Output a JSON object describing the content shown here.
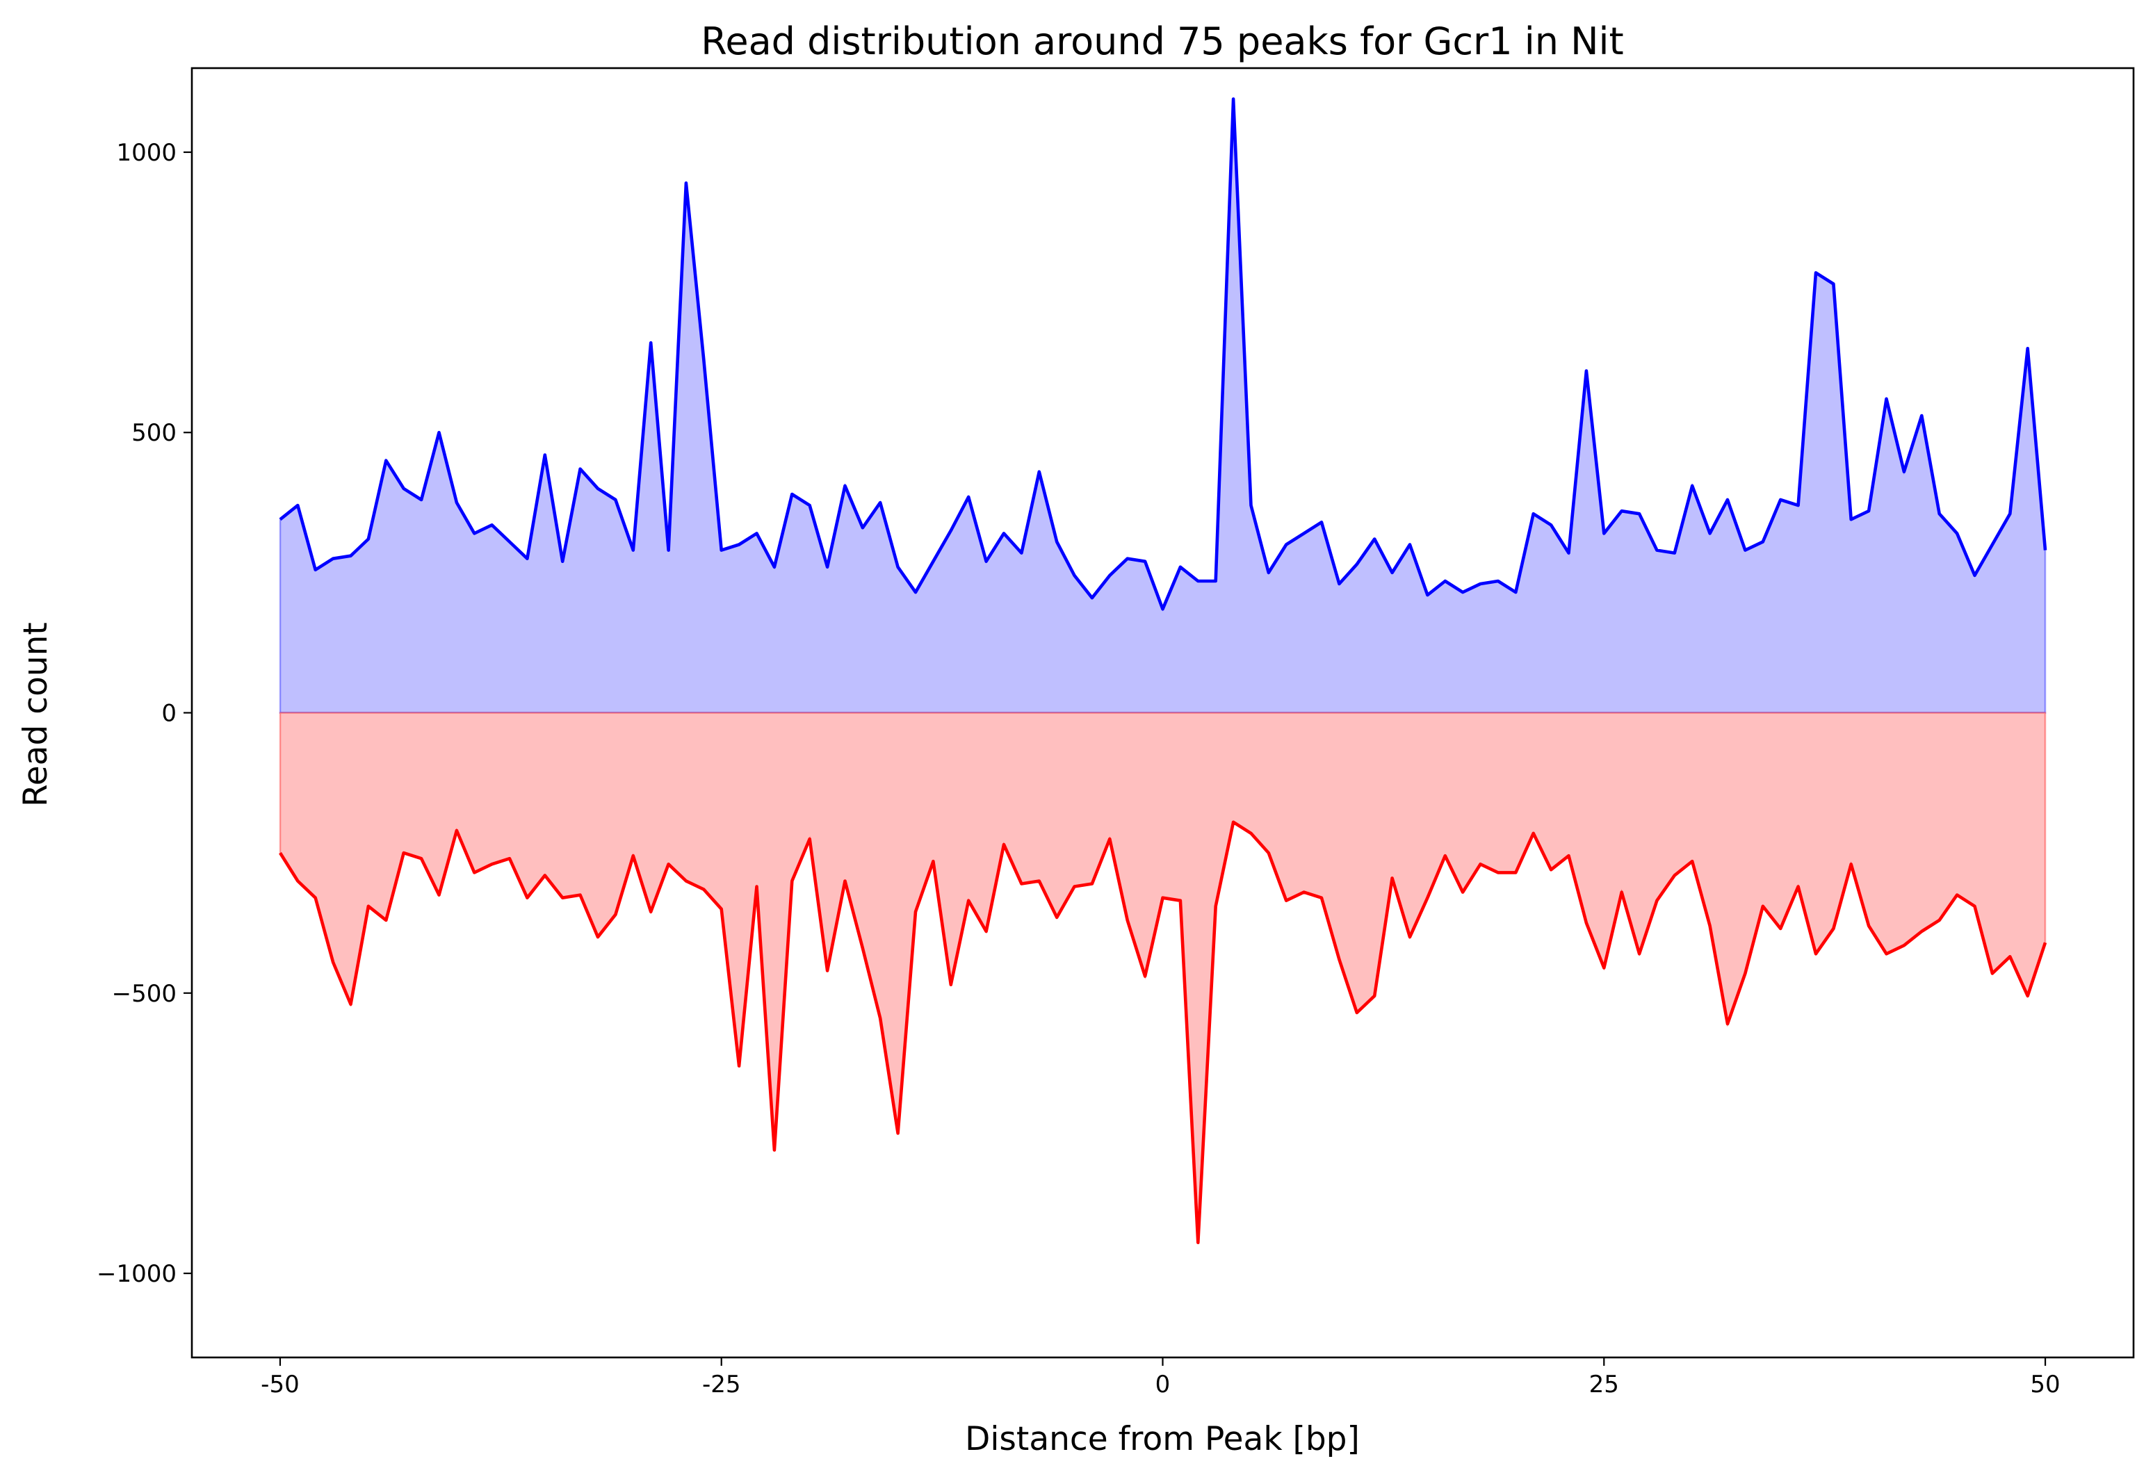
{
  "chart_data": {
    "type": "area",
    "title": "Read distribution around 75 peaks for Gcr1 in Nit",
    "xlabel": "Distance from Peak [bp]",
    "ylabel": "Read count",
    "xlim": [
      -55,
      55
    ],
    "ylim": [
      -1150,
      1150
    ],
    "grid": false,
    "xticks": [
      -50,
      -25,
      0,
      25,
      50
    ],
    "xtick_labels": [
      "-50",
      "-25",
      "0",
      "25",
      "50"
    ],
    "yticks": [
      1000,
      500,
      0,
      -500,
      -1000
    ],
    "ytick_labels": [
      "1000",
      "500",
      "0",
      "−500",
      "−1000"
    ],
    "x": [
      -50,
      -49,
      -48,
      -47,
      -46,
      -45,
      -44,
      -43,
      -42,
      -41,
      -40,
      -39,
      -38,
      -37,
      -36,
      -35,
      -34,
      -33,
      -32,
      -31,
      -30,
      -29,
      -28,
      -27,
      -26,
      -25,
      -24,
      -23,
      -22,
      -21,
      -20,
      -19,
      -18,
      -17,
      -16,
      -15,
      -14,
      -13,
      -12,
      -11,
      -10,
      -9,
      -8,
      -7,
      -6,
      -5,
      -4,
      -3,
      -2,
      -1,
      0,
      1,
      2,
      3,
      4,
      5,
      6,
      7,
      8,
      9,
      10,
      11,
      12,
      13,
      14,
      15,
      16,
      17,
      18,
      19,
      20,
      21,
      22,
      23,
      24,
      25,
      26,
      27,
      28,
      29,
      30,
      31,
      32,
      33,
      34,
      35,
      36,
      37,
      38,
      39,
      40,
      41,
      42,
      43,
      44,
      45,
      46,
      47,
      48,
      49,
      50
    ],
    "series": [
      {
        "color": "#0000ff",
        "fill": "#bfbfff",
        "values": [
          345,
          370,
          255,
          275,
          280,
          310,
          450,
          400,
          380,
          500,
          375,
          320,
          335,
          305,
          275,
          460,
          270,
          435,
          400,
          380,
          290,
          660,
          290,
          945,
          630,
          290,
          300,
          320,
          260,
          390,
          370,
          260,
          405,
          330,
          375,
          260,
          215,
          270,
          325,
          385,
          270,
          320,
          285,
          430,
          305,
          245,
          205,
          245,
          275,
          270,
          185,
          260,
          235,
          235,
          1095,
          370,
          250,
          300,
          320,
          340,
          230,
          265,
          310,
          250,
          300,
          210,
          235,
          215,
          230,
          235,
          215,
          355,
          335,
          285,
          610,
          320,
          360,
          355,
          290,
          285,
          405,
          320,
          380,
          290,
          305,
          380,
          370,
          785,
          765,
          345,
          360,
          560,
          430,
          530,
          355,
          320,
          245,
          300,
          355,
          650,
          290
        ]
      },
      {
        "color": "#ff0000",
        "fill": "#ffbfbf",
        "values": [
          -250,
          -300,
          -330,
          -445,
          -520,
          -345,
          -370,
          -250,
          -260,
          -325,
          -210,
          -285,
          -270,
          -260,
          -330,
          -290,
          -330,
          -325,
          -400,
          -360,
          -255,
          -355,
          -270,
          -300,
          -315,
          -350,
          -630,
          -310,
          -780,
          -300,
          -225,
          -460,
          -300,
          -420,
          -545,
          -750,
          -355,
          -265,
          -485,
          -335,
          -390,
          -235,
          -305,
          -300,
          -365,
          -310,
          -305,
          -225,
          -370,
          -470,
          -330,
          -335,
          -945,
          -345,
          -195,
          -215,
          -250,
          -335,
          -320,
          -330,
          -440,
          -535,
          -505,
          -295,
          -400,
          -330,
          -255,
          -320,
          -270,
          -285,
          -285,
          -215,
          -280,
          -255,
          -375,
          -455,
          -320,
          -430,
          -335,
          -290,
          -265,
          -380,
          -555,
          -465,
          -345,
          -385,
          -310,
          -430,
          -385,
          -270,
          -380,
          -430,
          -415,
          -390,
          -370,
          -325,
          -345,
          -465,
          -435,
          -505,
          -410
        ]
      }
    ]
  }
}
